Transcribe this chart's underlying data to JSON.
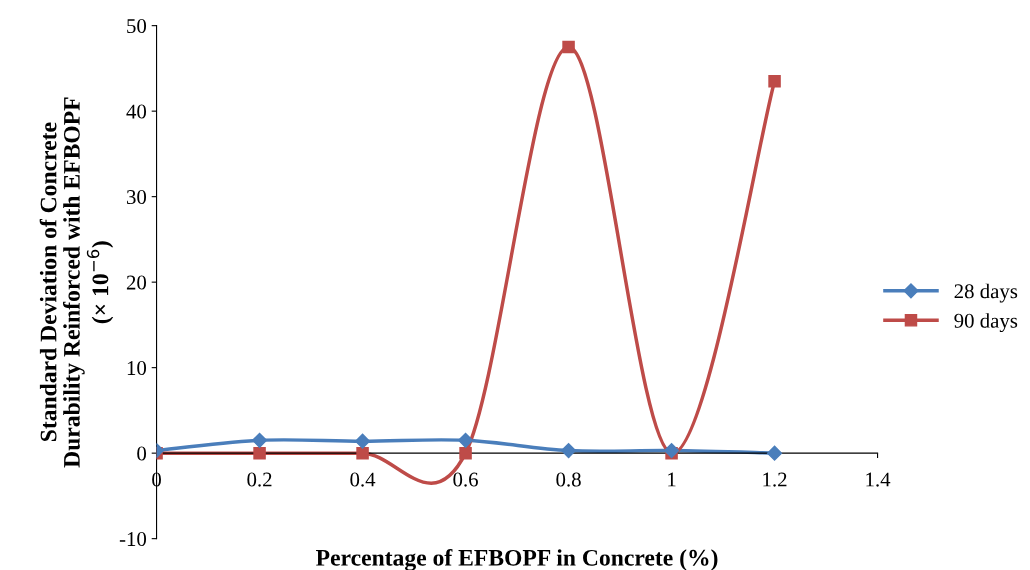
{
  "chart_data": {
    "type": "line",
    "xlabel": "Percentage of EFBOPF in Concrete (%)",
    "ylabel": "Standard Deviation of Concrete\nDurability Reinforced with EFBOPF\n(× 10$^{−6}$)",
    "x": [
      0,
      0.2,
      0.4,
      0.6,
      0.8,
      1.0,
      1.2
    ],
    "series": [
      {
        "name": "28 days",
        "color": "#4a7ebb",
        "marker": "diamond",
        "values": [
          0.3,
          1.5,
          1.4,
          1.5,
          0.3,
          0.3,
          0.0
        ]
      },
      {
        "name": "90 days",
        "color": "#be4b48",
        "marker": "square",
        "values": [
          0,
          0,
          0,
          0,
          47.5,
          0,
          43.5
        ]
      }
    ],
    "xlim": [
      0,
      1.4
    ],
    "xticks": [
      0,
      0.2,
      0.4,
      0.6,
      0.8,
      1,
      1.2,
      1.4
    ],
    "ylim": [
      -10,
      50
    ],
    "yticks": [
      -10,
      0,
      10,
      20,
      30,
      40,
      50
    ],
    "grid": false,
    "legend": "right",
    "line_style": "solid"
  }
}
